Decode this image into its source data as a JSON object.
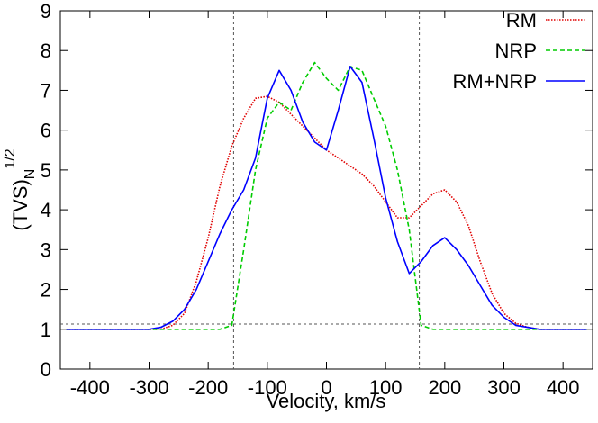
{
  "chart_data": {
    "type": "line",
    "xlabel": "Velocity, km/s",
    "ylabel": {
      "base": "(TVS)",
      "sub": "N",
      "sup": "1/2"
    },
    "x": [
      -440,
      -420,
      -400,
      -380,
      -360,
      -340,
      -320,
      -300,
      -280,
      -260,
      -240,
      -220,
      -200,
      -180,
      -160,
      -140,
      -120,
      -100,
      -80,
      -60,
      -40,
      -20,
      0,
      20,
      40,
      60,
      80,
      100,
      120,
      140,
      160,
      180,
      200,
      220,
      240,
      260,
      280,
      300,
      320,
      340,
      360,
      380,
      400,
      420,
      440
    ],
    "series": [
      {
        "name": "RM",
        "color": "#e00000",
        "dash": "1.5,1.5",
        "values": [
          1.0,
          1.0,
          1.0,
          1.0,
          1.0,
          1.0,
          1.0,
          1.0,
          1.0,
          1.1,
          1.4,
          2.2,
          3.3,
          4.6,
          5.6,
          6.3,
          6.8,
          6.85,
          6.7,
          6.4,
          6.1,
          5.8,
          5.5,
          5.3,
          5.1,
          4.9,
          4.6,
          4.2,
          3.8,
          3.8,
          4.1,
          4.4,
          4.5,
          4.2,
          3.6,
          2.7,
          1.9,
          1.4,
          1.15,
          1.05,
          1.0,
          1.0,
          1.0,
          1.0,
          1.0
        ]
      },
      {
        "name": "NRP",
        "color": "#00cc00",
        "dash": "5,3",
        "values": [
          1.0,
          1.0,
          1.0,
          1.0,
          1.0,
          1.0,
          1.0,
          1.0,
          1.0,
          1.0,
          1.0,
          1.0,
          1.0,
          1.0,
          1.1,
          3.0,
          5.0,
          6.3,
          6.7,
          6.5,
          7.2,
          7.7,
          7.3,
          7.0,
          7.6,
          7.5,
          6.8,
          6.1,
          5.0,
          3.5,
          1.1,
          1.0,
          1.0,
          1.0,
          1.0,
          1.0,
          1.0,
          1.0,
          1.0,
          1.0,
          1.0,
          1.0,
          1.0,
          1.0,
          1.0
        ]
      },
      {
        "name": "RM+NRP",
        "color": "#0000ff",
        "dash": "none",
        "values": [
          1.0,
          1.0,
          1.0,
          1.0,
          1.0,
          1.0,
          1.0,
          1.0,
          1.05,
          1.2,
          1.5,
          2.0,
          2.7,
          3.4,
          4.0,
          4.5,
          5.3,
          6.8,
          7.5,
          7.0,
          6.2,
          5.7,
          5.5,
          6.5,
          7.6,
          7.2,
          5.8,
          4.3,
          3.2,
          2.4,
          2.7,
          3.1,
          3.3,
          3.0,
          2.6,
          2.1,
          1.6,
          1.3,
          1.1,
          1.05,
          1.0,
          1.0,
          1.0,
          1.0,
          1.0
        ]
      }
    ],
    "vlines": [
      -157,
      157
    ],
    "hline": 1.13,
    "xlim": [
      -450,
      450
    ],
    "xticks": [
      -400,
      -300,
      -200,
      -100,
      0,
      100,
      200,
      300,
      400
    ],
    "ylim": [
      0,
      9
    ],
    "yticks": [
      0,
      1,
      2,
      3,
      4,
      5,
      6,
      7,
      8,
      9
    ],
    "legend": "upper right"
  }
}
